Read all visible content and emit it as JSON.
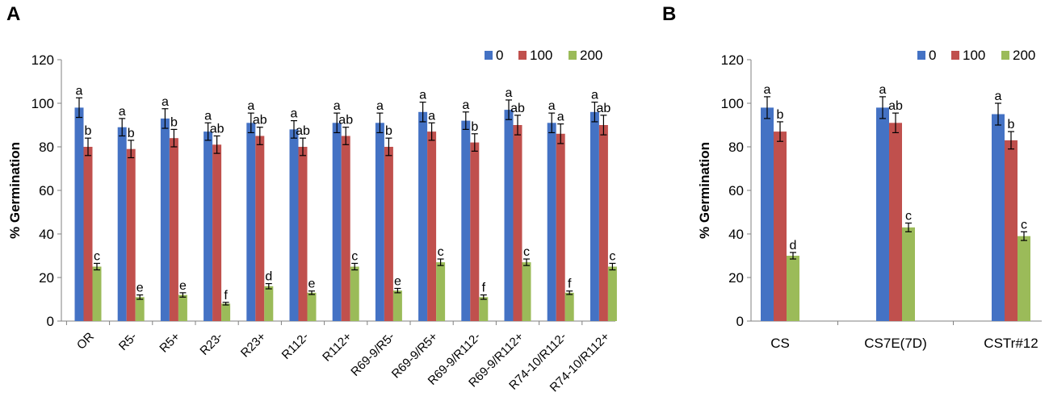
{
  "panel_labels": {
    "a": "A",
    "b": "B"
  },
  "colors": {
    "s0": "#4472C4",
    "s100": "#C0504D",
    "s200": "#9BBB59"
  },
  "chart_data": [
    {
      "type": "bar",
      "panel": "A",
      "title": "",
      "xlabel": "",
      "ylabel": "% Germination",
      "ylim": [
        0,
        120
      ],
      "yticks": [
        0,
        20,
        40,
        60,
        80,
        100,
        120
      ],
      "legend_position": "top-right",
      "categories": [
        "OR",
        "R5-",
        "R5+",
        "R23-",
        "R23+",
        "R112-",
        "R112+",
        "R69-9/R5-",
        "R69-9/R5+",
        "R69-9/R112-",
        "R69-9/R112+",
        "R74-10/R112-",
        "R74-10/R112+"
      ],
      "series": [
        {
          "name": "0",
          "values": [
            98,
            89,
            93,
            87,
            91,
            88,
            91,
            91,
            96,
            92,
            97,
            91,
            96
          ],
          "errors": [
            4.5,
            4,
            4.5,
            4,
            4.5,
            4,
            4.5,
            4.5,
            4.5,
            4,
            4.5,
            4.5,
            4.5
          ],
          "letters": [
            "a",
            "a",
            "a",
            "a",
            "a",
            "a",
            "a",
            "a",
            "a",
            "a",
            "a",
            "a",
            "a"
          ]
        },
        {
          "name": "100",
          "values": [
            80,
            79,
            84,
            81,
            85,
            80,
            85,
            80,
            87,
            82,
            90,
            86,
            90
          ],
          "errors": [
            4,
            4,
            4,
            4,
            4,
            4,
            4,
            4,
            4,
            4,
            4.5,
            4.5,
            4.5
          ],
          "letters": [
            "b",
            "b",
            "b",
            "ab",
            "ab",
            "ab",
            "ab",
            "b",
            "a",
            "b",
            "ab",
            "a",
            "ab"
          ]
        },
        {
          "name": "200",
          "values": [
            25,
            11,
            12,
            8,
            16,
            13,
            25,
            14,
            27,
            11,
            27,
            13,
            25
          ],
          "errors": [
            1.5,
            1,
            1,
            0.6,
            1.2,
            0.8,
            1.5,
            1,
            1.5,
            1,
            1.5,
            0.8,
            1.5
          ],
          "letters": [
            "c",
            "e",
            "e",
            "f",
            "d",
            "e",
            "c",
            "e",
            "c",
            "f",
            "c",
            "f",
            "c"
          ]
        }
      ]
    },
    {
      "type": "bar",
      "panel": "B",
      "title": "",
      "xlabel": "",
      "ylabel": "% Germination",
      "ylim": [
        0,
        120
      ],
      "yticks": [
        0,
        20,
        40,
        60,
        80,
        100,
        120
      ],
      "legend_position": "top-right",
      "categories": [
        "CS",
        "CS7E(7D)",
        "CSTr#12"
      ],
      "series": [
        {
          "name": "0",
          "values": [
            98,
            98,
            95
          ],
          "errors": [
            5,
            5,
            5
          ],
          "letters": [
            "a",
            "a",
            "a"
          ]
        },
        {
          "name": "100",
          "values": [
            87,
            91,
            83
          ],
          "errors": [
            4.5,
            4.5,
            4
          ],
          "letters": [
            "b",
            "ab",
            "b"
          ]
        },
        {
          "name": "200",
          "values": [
            30,
            43,
            39
          ],
          "errors": [
            1.5,
            2,
            2
          ],
          "letters": [
            "d",
            "c",
            "c"
          ]
        }
      ]
    }
  ]
}
